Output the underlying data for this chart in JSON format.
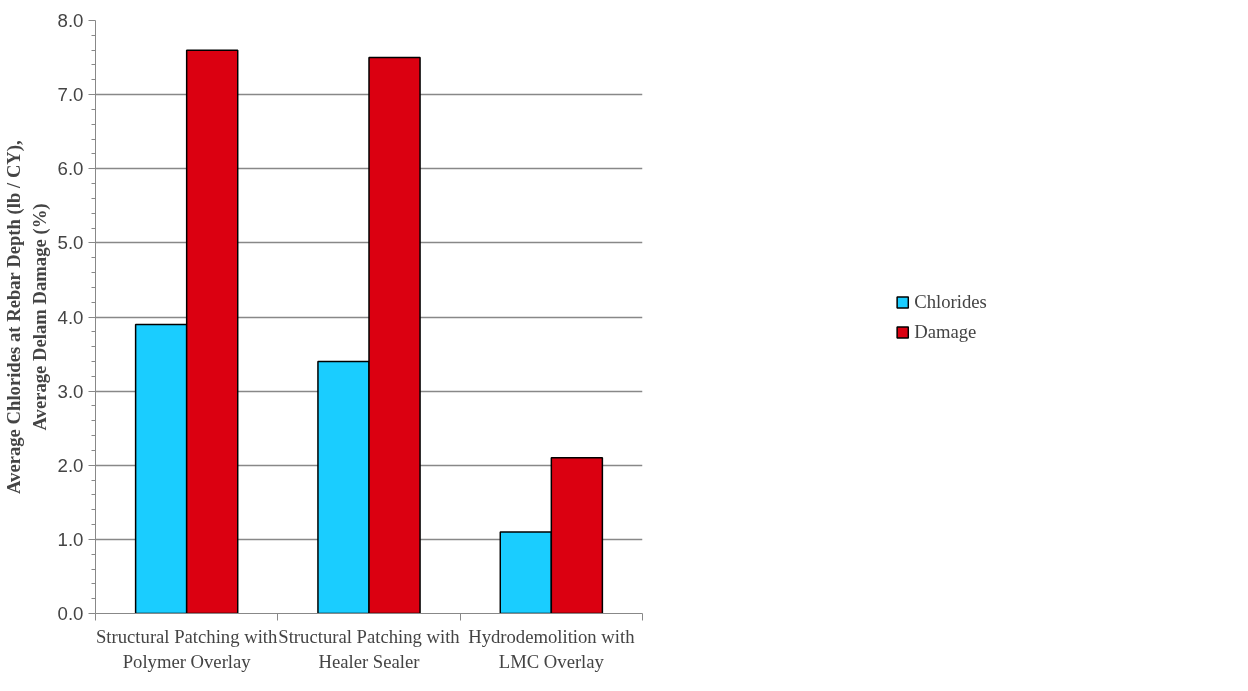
{
  "chart_data": {
    "type": "bar",
    "ylabel": "Average Chlorides at Rebar Depth (lb / CY),\nAverage Delam Damage (%)",
    "categories": [
      "Structural Patching with\nPolymer Overlay",
      "Structural Patching with\nHealer Sealer",
      "Hydrodemolition with\nLMC Overlay"
    ],
    "series": [
      {
        "name": "Chlorides",
        "color": "#1acdff",
        "values": [
          3.9,
          3.4,
          1.1
        ]
      },
      {
        "name": "Damage",
        "color": "#db0011",
        "values": [
          7.6,
          7.5,
          2.1
        ]
      }
    ],
    "ylim": [
      0,
      8
    ],
    "yticks": [
      {
        "value": 0,
        "label": "0.0"
      },
      {
        "value": 1,
        "label": "1.0"
      },
      {
        "value": 2,
        "label": "2.0"
      },
      {
        "value": 3,
        "label": "3.0"
      },
      {
        "value": 4,
        "label": "4.0"
      },
      {
        "value": 5,
        "label": "5.0"
      },
      {
        "value": 6,
        "label": "6.0"
      },
      {
        "value": 7,
        "label": "7.0"
      },
      {
        "value": 8,
        "label": "8.0"
      }
    ],
    "grid": "y",
    "legend": "right"
  }
}
